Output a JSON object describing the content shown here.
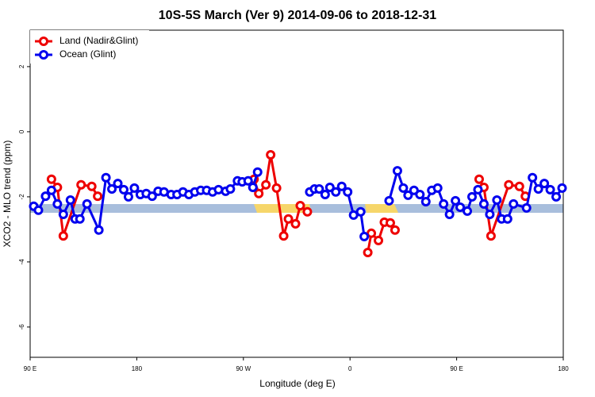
{
  "chart_data": {
    "type": "line",
    "title": "10S-5S March (Ver 9)   2014-09-06 to 2018-12-31",
    "x_label": "Longitude (deg E)",
    "y_label": "XCO2 - MLO trend (ppm)",
    "xlim": [
      90,
      540
    ],
    "xticks": [
      {
        "value": 90,
        "label": "90 E"
      },
      {
        "value": 180,
        "label": "180"
      },
      {
        "value": 270,
        "label": "90 W"
      },
      {
        "value": 360,
        "label": "0"
      },
      {
        "value": 450,
        "label": "90 E"
      },
      {
        "value": 540,
        "label": "180"
      }
    ],
    "ylim": [
      -6.93,
      3.12
    ],
    "yticks": [
      -6,
      -4,
      -2,
      0,
      2
    ],
    "legend": "top-left",
    "series": [
      {
        "name": "Land (Nadir&Glint)",
        "color": "#ee0000",
        "x": [
          108,
          113,
          118,
          133,
          142,
          147,
          null,
          279,
          283,
          289,
          293,
          298,
          304,
          308,
          314,
          318,
          324,
          null,
          375,
          378,
          384,
          389,
          394,
          398,
          null,
          469,
          473,
          479,
          494,
          503,
          508
        ],
        "values": [
          -1.46,
          -1.71,
          -3.2,
          -1.63,
          -1.68,
          -1.98,
          null,
          -1.46,
          -1.9,
          -1.63,
          -0.71,
          -1.73,
          -3.2,
          -2.68,
          -2.83,
          -2.27,
          -2.46,
          null,
          -3.71,
          -3.12,
          -3.34,
          -2.78,
          -2.8,
          -3.02,
          null,
          -1.46,
          -1.71,
          -3.2,
          -1.63,
          -1.68,
          -1.98
        ]
      },
      {
        "name": "Ocean (Glint)",
        "color": "#0000ee",
        "x": [
          93,
          97,
          103,
          108,
          113,
          118,
          124,
          128,
          132,
          138,
          148,
          154,
          159,
          164,
          169,
          173,
          178,
          183,
          188,
          193,
          198,
          203,
          209,
          214,
          219,
          224,
          229,
          234,
          239,
          244,
          249,
          255,
          259,
          265,
          269,
          274,
          278,
          282,
          null,
          326,
          330,
          334,
          339,
          343,
          348,
          353,
          358,
          363,
          369,
          372,
          null,
          393,
          400,
          405,
          409,
          414,
          419,
          424,
          429,
          434,
          439,
          444,
          449,
          453,
          459,
          463,
          468,
          473,
          478,
          484,
          488,
          493,
          498,
          509,
          514,
          519,
          524,
          529,
          534,
          539
        ],
        "values": [
          -2.29,
          -2.41,
          -1.98,
          -1.8,
          -2.22,
          -2.54,
          -2.1,
          -2.68,
          -2.68,
          -2.22,
          -3.02,
          -1.41,
          -1.76,
          -1.59,
          -1.78,
          -2.0,
          -1.73,
          -1.93,
          -1.9,
          -1.98,
          -1.83,
          -1.85,
          -1.93,
          -1.93,
          -1.85,
          -1.93,
          -1.85,
          -1.8,
          -1.8,
          -1.85,
          -1.78,
          -1.83,
          -1.76,
          -1.51,
          -1.54,
          -1.51,
          -1.71,
          -1.24,
          null,
          -1.85,
          -1.76,
          -1.76,
          -1.93,
          -1.71,
          -1.85,
          -1.68,
          -1.85,
          -2.56,
          -2.46,
          -3.22,
          null,
          -2.12,
          -1.2,
          -1.73,
          -1.95,
          -1.8,
          -1.93,
          -2.15,
          -1.8,
          -1.73,
          -2.22,
          -2.54,
          -2.12,
          -2.32,
          -2.44,
          -2.0,
          -1.78,
          -2.22,
          -2.54,
          -2.1,
          -2.68,
          -2.68,
          -2.22,
          -2.34,
          -1.41,
          -1.76,
          -1.59,
          -1.78,
          -2.0,
          -1.73
        ]
      }
    ]
  }
}
